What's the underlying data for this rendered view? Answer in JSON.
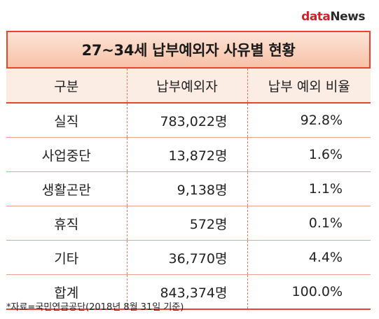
{
  "logo": {
    "data_part": "data",
    "news_part": "News"
  },
  "table": {
    "title": "27~34세 납부예외자 사유별 현황",
    "headers": [
      "구분",
      "납부예외자",
      "납부 예외 비율"
    ],
    "rows": [
      {
        "category": "실직",
        "count": "783,022명",
        "rate": "92.8%"
      },
      {
        "category": "사업중단",
        "count": "13,872명",
        "rate": "1.6%"
      },
      {
        "category": "생활곤란",
        "count": "9,138명",
        "rate": "1.1%"
      },
      {
        "category": "휴직",
        "count": "572명",
        "rate": "0.1%"
      },
      {
        "category": "기타",
        "count": "36,770명",
        "rate": "4.4%"
      },
      {
        "category": "합계",
        "count": "843,374명",
        "rate": "100.0%"
      }
    ]
  },
  "source": "*자료=국민연금공단(2018년 8월 31일 기준)",
  "colors": {
    "accent": "#e8452c",
    "title_bg": "#fbd3bf",
    "logo_red": "#d1202b"
  }
}
